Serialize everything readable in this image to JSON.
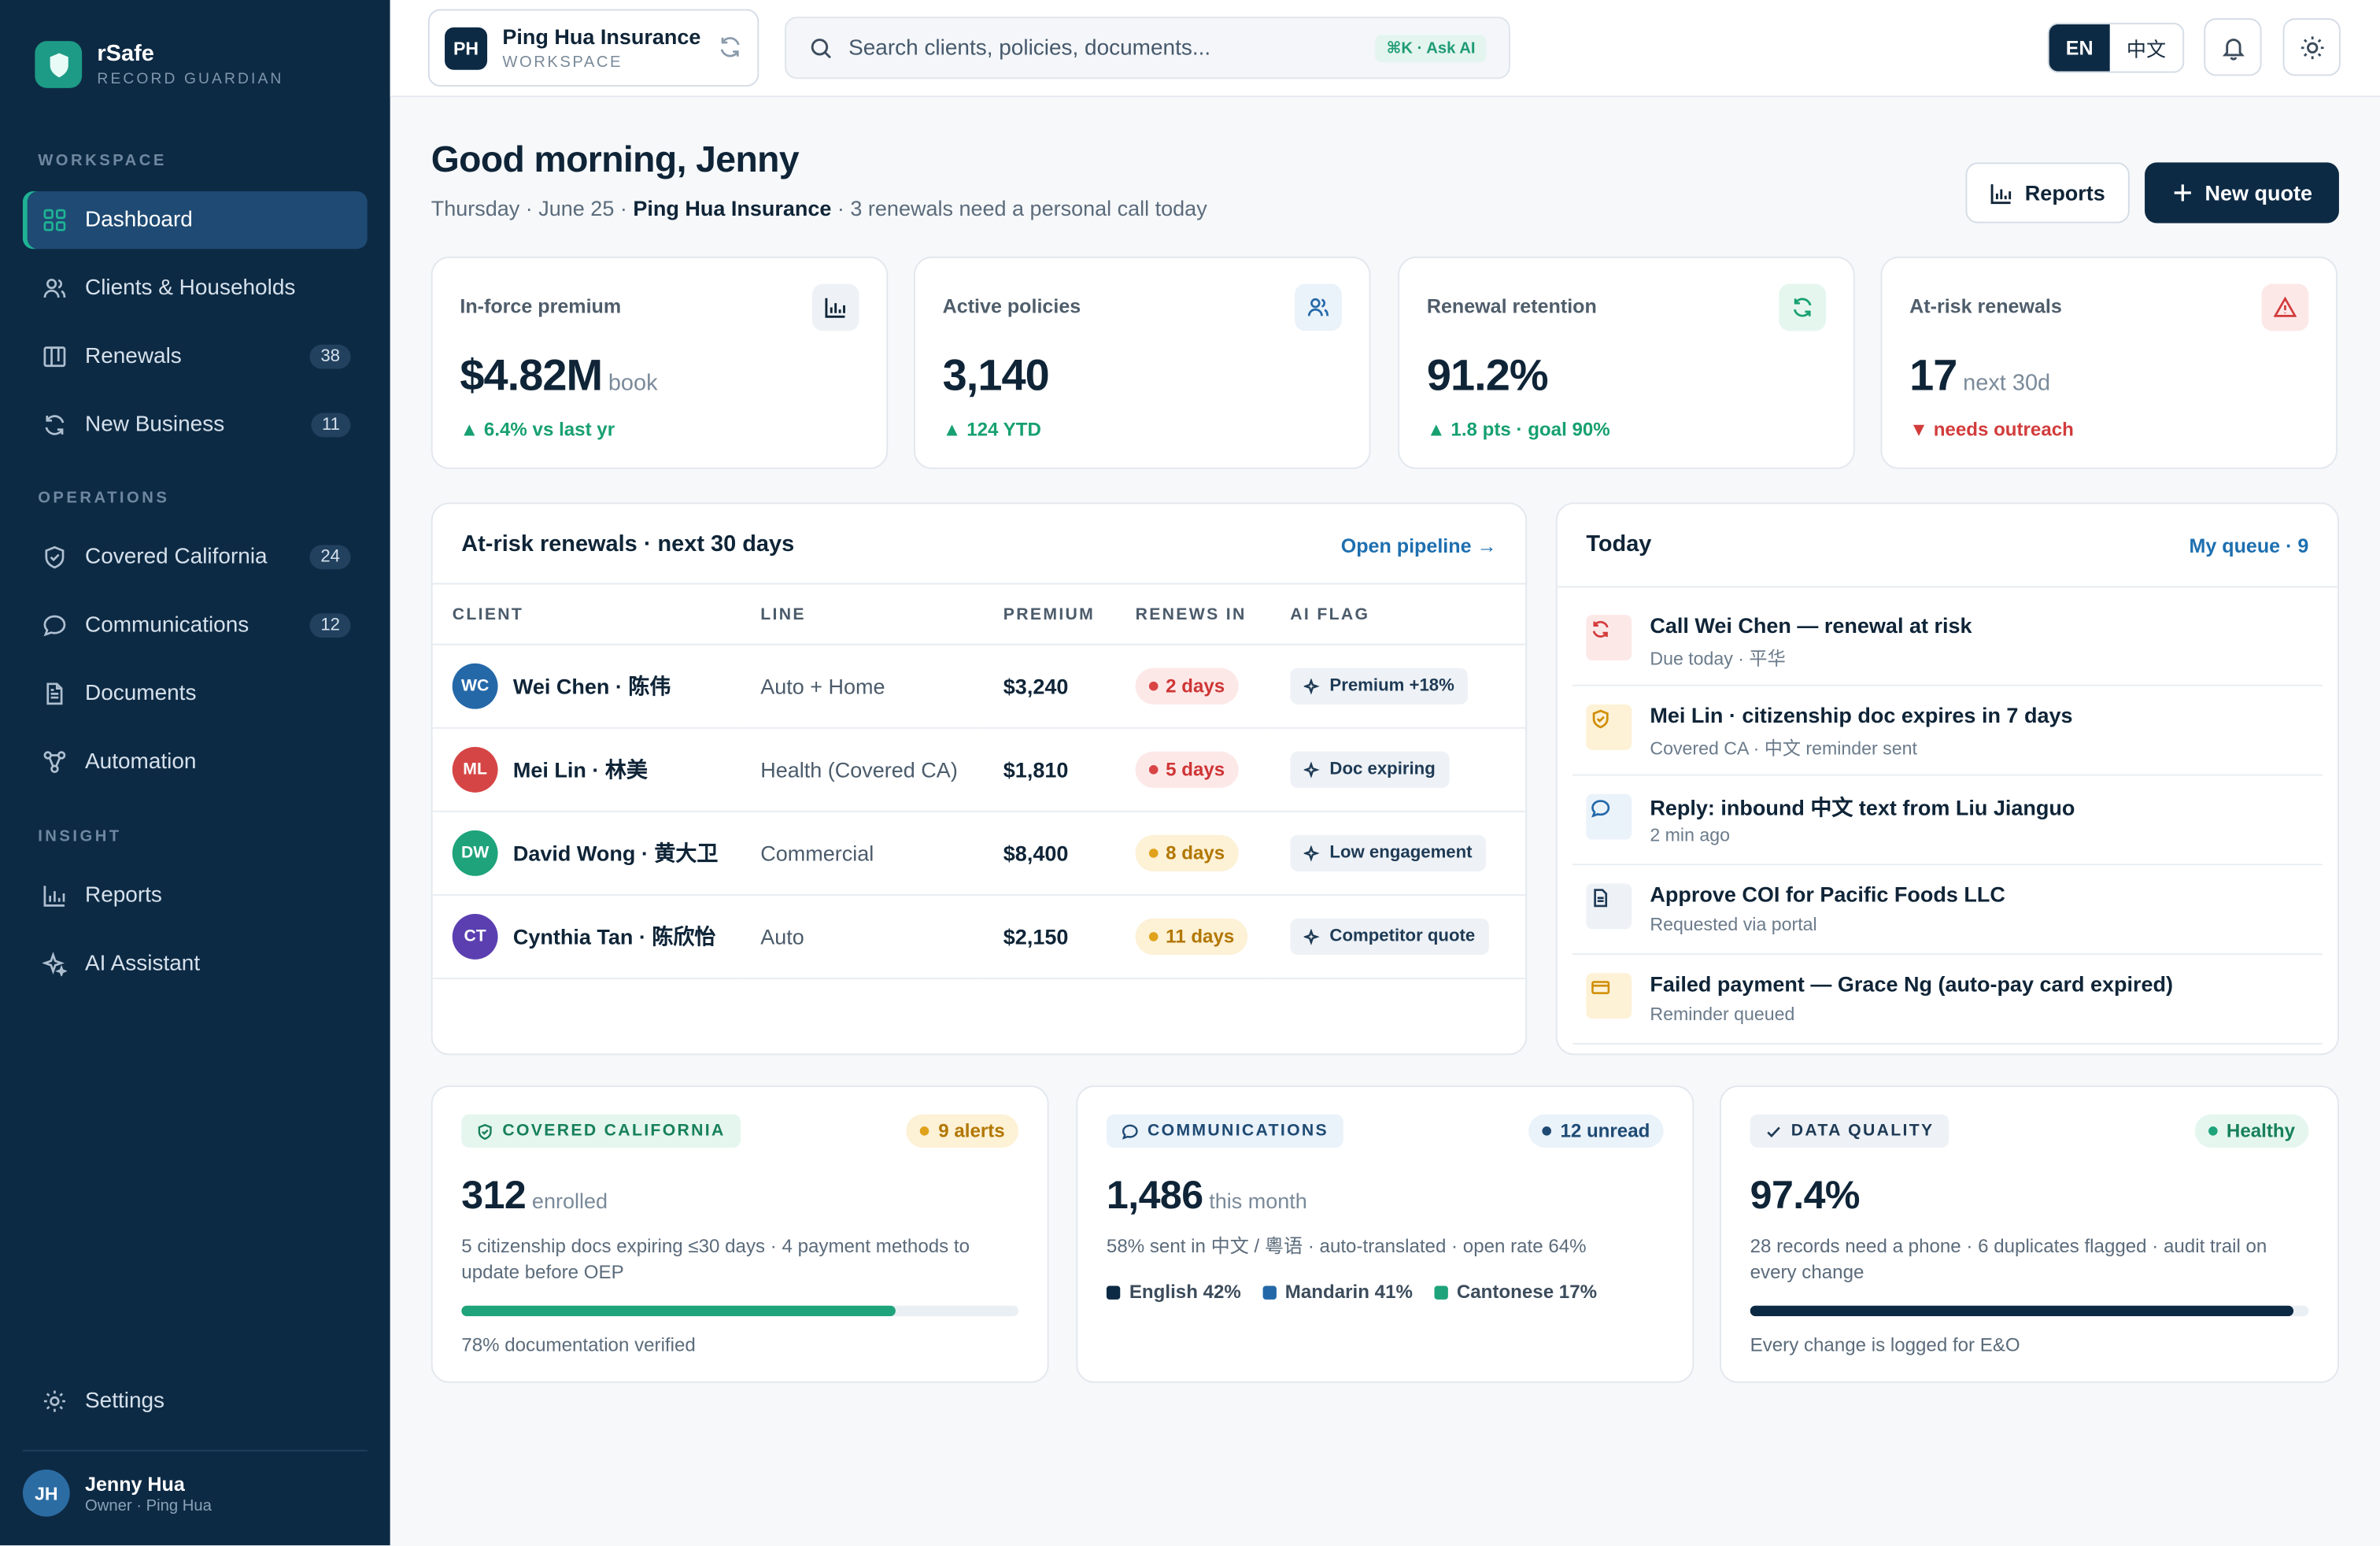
{
  "brand": {
    "name": "rSafe",
    "subtitle": "RECORD GUARDIAN"
  },
  "sidebar": {
    "sections": {
      "workspace": "WORKSPACE",
      "operations": "OPERATIONS",
      "insight": "INSIGHT"
    },
    "items": [
      {
        "label": "Dashboard",
        "icon": "grid-icon",
        "active": true
      },
      {
        "label": "Clients & Households",
        "icon": "users-icon"
      },
      {
        "label": "Renewals",
        "icon": "columns-icon",
        "count": "38"
      },
      {
        "label": "New Business",
        "icon": "refresh-icon",
        "count": "11"
      },
      {
        "label": "Covered California",
        "icon": "shield-check-icon",
        "count": "24"
      },
      {
        "label": "Communications",
        "icon": "chat-bubble-icon",
        "count": "12"
      },
      {
        "label": "Documents",
        "icon": "document-icon"
      },
      {
        "label": "Automation",
        "icon": "workflow-icon"
      },
      {
        "label": "Reports",
        "icon": "bar-chart-icon"
      },
      {
        "label": "AI Assistant",
        "icon": "sparkle-icon"
      }
    ],
    "settings": "Settings",
    "user": {
      "initials": "JH",
      "name": "Jenny Hua",
      "role": "Owner · Ping Hua"
    }
  },
  "topbar": {
    "workspace": {
      "badge": "PH",
      "name": "Ping Hua Insurance",
      "label": "WORKSPACE"
    },
    "search": {
      "placeholder": "Search clients, policies, documents...",
      "shortcut": "⌘K · Ask AI"
    },
    "lang": {
      "active": "EN",
      "other": "中文"
    }
  },
  "header": {
    "greeting": "Good morning, Jenny",
    "date": "Thursday · June 25 · ",
    "company": "Ping Hua Insurance",
    "note": " · 3 renewals need a personal call today",
    "reports_btn": "Reports",
    "new_quote_btn": "New quote"
  },
  "kpis": [
    {
      "label": "In-force premium",
      "value": "$4.82M",
      "unit": "book",
      "delta": "▲ 6.4% vs last yr",
      "icon": "bar-chart-icon"
    },
    {
      "label": "Active policies",
      "value": "3,140",
      "unit": "",
      "delta": "▲ 124 YTD",
      "icon": "users-icon"
    },
    {
      "label": "Renewal retention",
      "value": "91.2%",
      "unit": "",
      "delta": "▲ 1.8 pts · goal 90%",
      "icon": "refresh-icon"
    },
    {
      "label": "At-risk renewals",
      "value": "17",
      "unit": "next 30d",
      "delta": "▼ needs outreach",
      "icon": "warning-icon"
    }
  ],
  "renewals": {
    "title": "At-risk renewals · next 30 days",
    "link": "Open pipeline →",
    "columns": [
      "CLIENT",
      "LINE",
      "PREMIUM",
      "RENEWS IN",
      "AI FLAG"
    ],
    "rows": [
      {
        "initials": "WC",
        "client": "Wei Chen · 陈伟",
        "line": "Auto + Home",
        "premium": "$3,240",
        "renews": "2 days",
        "flag": "Premium +18%",
        "color": "#2468a8",
        "tone": "red"
      },
      {
        "initials": "ML",
        "client": "Mei Lin · 林美",
        "line": "Health (Covered CA)",
        "premium": "$1,810",
        "renews": "5 days",
        "flag": "Doc expiring",
        "color": "#d64545",
        "tone": "red"
      },
      {
        "initials": "DW",
        "client": "David Wong · 黄大卫",
        "line": "Commercial",
        "premium": "$8,400",
        "renews": "8 days",
        "flag": "Low engagement",
        "color": "#1ea37a",
        "tone": "amber"
      },
      {
        "initials": "CT",
        "client": "Cynthia Tan · 陈欣怡",
        "line": "Auto",
        "premium": "$2,150",
        "renews": "11 days",
        "flag": "Competitor quote",
        "color": "#5b3fb0",
        "tone": "amber"
      }
    ]
  },
  "today": {
    "title": "Today",
    "link": "My queue · 9",
    "items": [
      {
        "title": "Call Wei Chen — renewal at risk",
        "sub": "Due today · 平华",
        "icon": "refresh-icon"
      },
      {
        "title": "Mei Lin · citizenship doc expires in 7 days",
        "sub": "Covered CA · 中文 reminder sent",
        "icon": "shield-check-icon"
      },
      {
        "title": "Reply: inbound 中文 text from Liu Jianguo",
        "sub": "2 min ago",
        "icon": "chat-bubble-icon"
      },
      {
        "title": "Approve COI for Pacific Foods LLC",
        "sub": "Requested via portal",
        "icon": "document-icon"
      },
      {
        "title": "Failed payment — Grace Ng (auto-pay card expired)",
        "sub": "Reminder queued",
        "icon": "credit-card-icon"
      }
    ]
  },
  "covered": {
    "tag": "COVERED CALIFORNIA",
    "badge": "9 alerts",
    "value": "312",
    "unit": "enrolled",
    "desc": "5 citizenship docs expiring ≤30 days · 4 payment methods to update before OEP",
    "progress": 0.78,
    "foot": "78% documentation verified"
  },
  "comms": {
    "tag": "COMMUNICATIONS",
    "badge": "12 unread",
    "value": "1,486",
    "unit": "this month",
    "desc": "58% sent in 中文 / 粵语 · auto-translated · open rate 64%",
    "legend": [
      {
        "label": "English 42%",
        "color": "#0d2a44"
      },
      {
        "label": "Mandarin 41%",
        "color": "#2468a8"
      },
      {
        "label": "Cantonese 17%",
        "color": "#1ea37a"
      }
    ]
  },
  "quality": {
    "tag": "DATA QUALITY",
    "badge": "Healthy",
    "value": "97.4%",
    "unit": "",
    "desc": "28 records need a phone · 6 duplicates flagged · audit trail on every change",
    "progress": 0.974,
    "foot": "Every change is logged for E&O"
  },
  "colors": {
    "navy": "#0d2a44",
    "accent": "#1fb394",
    "link": "#1d6fb0",
    "danger": "#d23b3b",
    "warning": "#e0a21a"
  }
}
